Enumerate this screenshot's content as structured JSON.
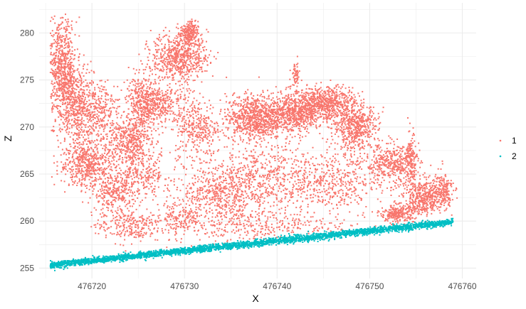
{
  "chart_data": {
    "type": "scatter",
    "xlabel": "X",
    "ylabel": "Z",
    "xlim": [
      476714.3,
      476761.5
    ],
    "ylim": [
      253.9,
      283.2
    ],
    "x_ticks": [
      476720,
      476730,
      476740,
      476750,
      476760
    ],
    "x_tick_labels": [
      "476720",
      "476730",
      "476740",
      "476750",
      "476760"
    ],
    "y_ticks": [
      255,
      260,
      265,
      270,
      275,
      280
    ],
    "y_tick_labels": [
      "255",
      "260",
      "265",
      "270",
      "275",
      "280"
    ],
    "grid": true,
    "legend_position": "right",
    "series": [
      {
        "name": "1",
        "color": "#F8766D",
        "clusters": [
          [
            476716.8,
            276.0,
            1.3,
            4.5,
            700
          ],
          [
            476718.5,
            272.0,
            1.6,
            3.5,
            500
          ],
          [
            476721.0,
            271.5,
            1.5,
            3.0,
            250
          ],
          [
            476719.5,
            266.0,
            2.5,
            2.0,
            500
          ],
          [
            476722.5,
            263.0,
            2.0,
            2.0,
            300
          ],
          [
            476725.5,
            272.5,
            1.5,
            2.5,
            350
          ],
          [
            476724.0,
            268.5,
            2.0,
            2.0,
            400
          ],
          [
            476727.5,
            272.5,
            2.5,
            2.0,
            350
          ],
          [
            476729.5,
            277.5,
            2.5,
            2.0,
            650
          ],
          [
            476730.5,
            280.0,
            0.8,
            1.0,
            200
          ],
          [
            476731.5,
            270.0,
            2.0,
            2.5,
            300
          ],
          [
            476737.5,
            271.0,
            2.5,
            2.0,
            800
          ],
          [
            476742.0,
            271.5,
            2.5,
            1.8,
            700
          ],
          [
            476745.5,
            272.5,
            2.5,
            1.5,
            600
          ],
          [
            476748.5,
            270.0,
            2.0,
            2.0,
            500
          ],
          [
            476752.5,
            266.0,
            2.5,
            1.8,
            450
          ],
          [
            476756.0,
            262.5,
            2.0,
            1.5,
            450
          ],
          [
            476757.8,
            263.5,
            1.0,
            1.5,
            150
          ],
          [
            476754.5,
            266.5,
            0.4,
            2.5,
            120
          ],
          [
            476753.0,
            260.8,
            1.5,
            0.8,
            250
          ],
          [
            476738.0,
            264.5,
            6.0,
            3.0,
            700
          ],
          [
            476746.0,
            264.0,
            4.0,
            3.0,
            400
          ],
          [
            476738.0,
            259.5,
            8.0,
            1.5,
            350
          ],
          [
            476724.0,
            259.5,
            3.0,
            1.5,
            250
          ],
          [
            476729.5,
            260.5,
            2.0,
            1.5,
            150
          ],
          [
            476733.5,
            262.5,
            3.0,
            2.5,
            350
          ],
          [
            476725.5,
            265.0,
            2.5,
            2.0,
            250
          ],
          [
            476742.0,
            275.5,
            0.4,
            1.2,
            60
          ]
        ]
      },
      {
        "name": "2",
        "color": "#00BFC4",
        "line": {
          "x": [
            476715.5,
            476759.0
          ],
          "y": [
            255.3,
            259.9
          ],
          "spread": 0.35
        },
        "count": 3500
      }
    ]
  }
}
